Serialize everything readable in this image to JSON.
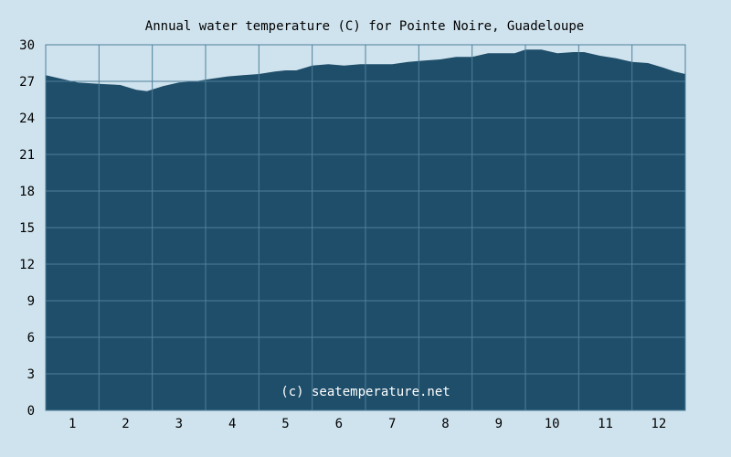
{
  "chart_data": {
    "type": "area",
    "title": "Annual water temperature (C) for Pointe Noire, Guadeloupe",
    "watermark": "(c) seatemperature.net",
    "xlabel": "",
    "ylabel": "",
    "x_categories": [
      "1",
      "2",
      "3",
      "4",
      "5",
      "6",
      "7",
      "8",
      "9",
      "10",
      "11",
      "12"
    ],
    "ylim": [
      0,
      30
    ],
    "yticks": [
      0,
      3,
      6,
      9,
      12,
      15,
      18,
      21,
      24,
      27,
      30
    ],
    "grid": true,
    "legend": "none",
    "colors": {
      "background": "#cfe3ee",
      "fill": "#1f4e6a",
      "grid": "#4f7f99"
    },
    "series": [
      {
        "x_month": [
          0.5,
          0.8,
          1.1,
          1.5,
          1.9,
          2.2,
          2.4,
          2.7,
          3.0,
          3.3,
          3.6,
          3.9,
          4.2,
          4.5,
          4.8,
          5.0,
          5.2,
          5.5,
          5.8,
          6.1,
          6.4,
          6.7,
          7.0,
          7.3,
          7.6,
          7.9,
          8.2,
          8.5,
          8.8,
          9.1,
          9.3,
          9.5,
          9.8,
          10.1,
          10.4,
          10.6,
          10.9,
          11.2,
          11.5,
          11.8,
          12.1,
          12.3,
          12.5
        ],
        "values": [
          27.5,
          27.2,
          26.9,
          26.8,
          26.7,
          26.3,
          26.2,
          26.6,
          26.9,
          27.0,
          27.2,
          27.4,
          27.5,
          27.6,
          27.8,
          27.9,
          27.9,
          28.3,
          28.4,
          28.3,
          28.4,
          28.4,
          28.4,
          28.6,
          28.7,
          28.8,
          29.0,
          29.0,
          29.3,
          29.3,
          29.3,
          29.6,
          29.6,
          29.3,
          29.4,
          29.4,
          29.1,
          28.9,
          28.6,
          28.5,
          28.1,
          27.8,
          27.6
        ]
      }
    ]
  }
}
